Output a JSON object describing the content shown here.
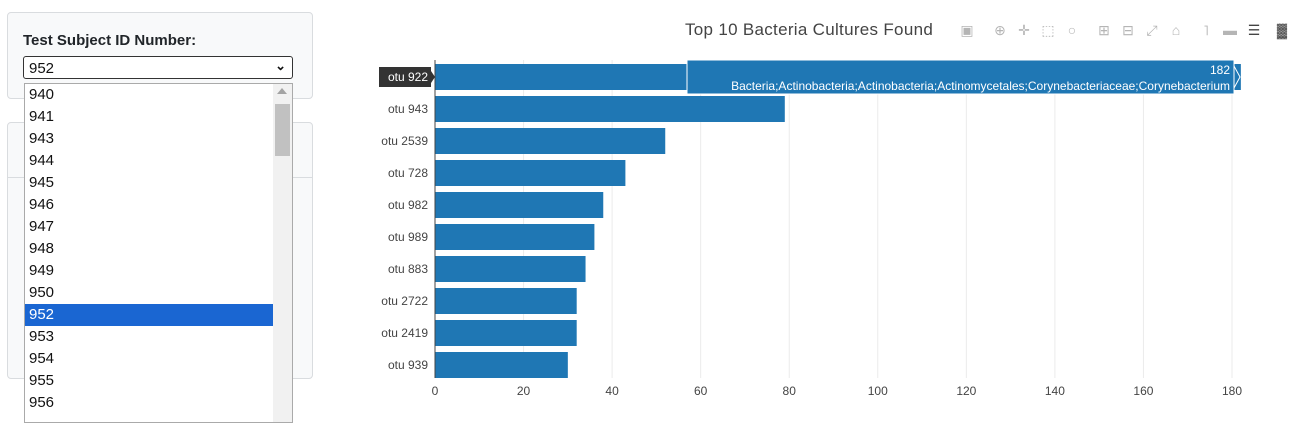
{
  "selector": {
    "label": "Test Subject ID Number:",
    "selected": "952",
    "options": [
      "940",
      "941",
      "943",
      "944",
      "945",
      "946",
      "947",
      "948",
      "949",
      "950",
      "952",
      "953",
      "954",
      "955",
      "956"
    ]
  },
  "modebar": {
    "icons": [
      "camera-icon",
      "zoom-icon",
      "pan-icon",
      "box-select-icon",
      "lasso-icon",
      "zoom-in-icon",
      "zoom-out-icon",
      "autoscale-icon",
      "reset-axes-icon",
      "spike-lines-icon",
      "hover-closest-icon",
      "hover-compare-icon",
      "plotly-logo-icon"
    ]
  },
  "colors": {
    "bar": "#1f77b4",
    "selected_option": "#1a66d2"
  },
  "chart_data": {
    "type": "bar",
    "orientation": "horizontal",
    "title": "Top 10 Bacteria Cultures Found",
    "categories": [
      "otu 922",
      "otu 943",
      "otu 2539",
      "otu 728",
      "otu 982",
      "otu 989",
      "otu 883",
      "otu 2722",
      "otu 2419",
      "otu 939"
    ],
    "values": [
      182,
      79,
      52,
      43,
      38,
      36,
      34,
      32,
      32,
      30
    ],
    "xlim": [
      0,
      182
    ],
    "xticks": [
      "0",
      "20",
      "40",
      "60",
      "80",
      "100",
      "120",
      "140",
      "160",
      "180"
    ],
    "grid": true,
    "hover": {
      "category": "otu 922",
      "value": "182",
      "label": "Bacteria;Actinobacteria;Actinobacteria;Actinomycetales;Corynebacteriaceae;Corynebacterium"
    }
  }
}
